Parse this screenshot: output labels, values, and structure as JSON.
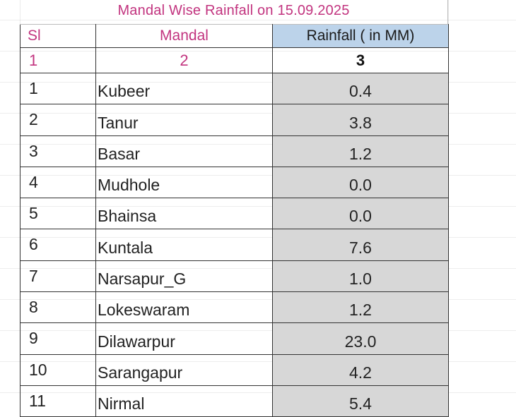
{
  "title": "Mandal Wise  Rainfall on 15.09.2025",
  "headers": {
    "sl": "Sl",
    "mandal": "Mandal",
    "rainfall": "Rainfall ( in MM)"
  },
  "column_numbers": [
    "1",
    "2",
    "3"
  ],
  "rows": [
    {
      "sl": "1",
      "mandal": "Kubeer",
      "rainfall": "0.4"
    },
    {
      "sl": "2",
      "mandal": "Tanur",
      "rainfall": "3.8"
    },
    {
      "sl": "3",
      "mandal": "Basar",
      "rainfall": "1.2"
    },
    {
      "sl": "4",
      "mandal": "Mudhole",
      "rainfall": "0.0"
    },
    {
      "sl": "5",
      "mandal": "Bhainsa",
      "rainfall": "0.0"
    },
    {
      "sl": "6",
      "mandal": "Kuntala",
      "rainfall": "7.6"
    },
    {
      "sl": "7",
      "mandal": "Narsapur_G",
      "rainfall": "1.0"
    },
    {
      "sl": "8",
      "mandal": "Lokeswaram",
      "rainfall": "1.2"
    },
    {
      "sl": "9",
      "mandal": "Dilawarpur",
      "rainfall": "23.0"
    },
    {
      "sl": "10",
      "mandal": "Sarangapur",
      "rainfall": "4.2"
    },
    {
      "sl": "11",
      "mandal": "Nirmal",
      "rainfall": "5.4"
    }
  ],
  "colors": {
    "title_pink": "#c2347f",
    "header_blue": "#bcd3ea",
    "rainfall_grey": "#d7d7d7"
  }
}
